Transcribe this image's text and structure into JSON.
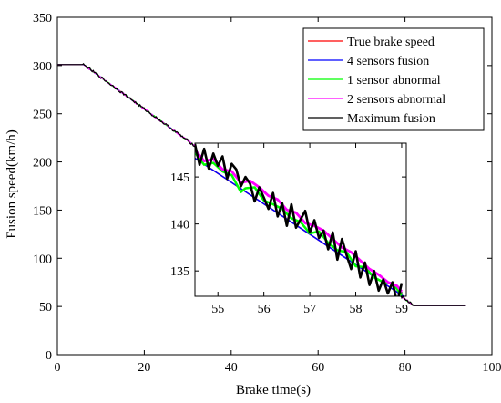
{
  "chart_data": {
    "type": "line",
    "xlabel": "Brake time(s)",
    "ylabel": "Fusion speed(km/h)",
    "xlim": [
      0,
      100
    ],
    "ylim": [
      0,
      350
    ],
    "xticks": [
      0,
      20,
      40,
      60,
      80,
      100
    ],
    "yticks": [
      0,
      50,
      100,
      150,
      200,
      250,
      300,
      350
    ],
    "grid": false,
    "legend_position": "top-right",
    "series": [
      {
        "name": "True brake speed",
        "color": "#ff0000",
        "x": [
          0,
          6,
          82,
          94
        ],
        "y": [
          301,
          301,
          51,
          51
        ]
      },
      {
        "name": "4 sensors fusion",
        "color": "#0000ff",
        "x": [
          0,
          6,
          82,
          94
        ],
        "y": [
          301,
          301,
          51,
          51
        ]
      },
      {
        "name": "1 sensor abnormal",
        "color": "#00ff00",
        "x": [
          0,
          6,
          82,
          94
        ],
        "y": [
          301,
          301,
          51,
          51
        ]
      },
      {
        "name": "2 sensors abnormal",
        "color": "#ff00ff",
        "x": [
          0,
          6,
          82,
          94
        ],
        "y": [
          301,
          301,
          51,
          51
        ]
      },
      {
        "name": "Maximum fusion",
        "color": "#000000",
        "x": [
          0,
          6,
          82,
          94
        ],
        "y": [
          301,
          301,
          51,
          51
        ]
      }
    ],
    "inset": {
      "xlim": [
        54.5,
        59.1
      ],
      "ylim": [
        132.3,
        148.6
      ],
      "xticks": [
        55,
        56,
        57,
        58,
        59
      ],
      "yticks": [
        135,
        140,
        145
      ],
      "series": [
        {
          "name": "True brake speed",
          "color": "#ff0000",
          "x": [
            54.5,
            59.1
          ],
          "y": [
            147.0,
            132.1
          ]
        },
        {
          "name": "4 sensors fusion",
          "color": "#0000ff",
          "x": [
            54.5,
            59.1
          ],
          "y": [
            147.0,
            132.1
          ]
        },
        {
          "name": "1 sensor abnormal",
          "color": "#00ff00",
          "x": [
            54.5,
            54.7,
            54.9,
            55.1,
            55.3,
            55.5,
            55.6,
            55.8,
            56.0,
            56.2,
            56.4,
            56.6,
            56.8,
            57.0,
            57.2,
            57.4,
            57.6,
            57.8,
            58.0,
            58.2,
            58.4,
            58.6,
            58.8,
            59.0
          ],
          "y": [
            147.6,
            146.3,
            146.5,
            145.6,
            145.2,
            143.4,
            143.8,
            143.9,
            142.5,
            142.1,
            141.6,
            140.6,
            140.2,
            139.0,
            139.2,
            138.0,
            137.2,
            137.0,
            135.5,
            135.4,
            134.3,
            133.8,
            133.7,
            132.4
          ]
        },
        {
          "name": "2 sensors abnormal",
          "color": "#ff00ff",
          "x": [
            54.5,
            54.7,
            54.9,
            55.1,
            55.3,
            55.5,
            55.7,
            55.9,
            56.1,
            56.3,
            56.5,
            56.7,
            56.9,
            57.1,
            57.3,
            57.5,
            57.7,
            57.9,
            58.1,
            58.3,
            58.5,
            58.7,
            58.9,
            59.0
          ],
          "y": [
            147.9,
            146.7,
            146.9,
            145.8,
            145.6,
            144.4,
            144.6,
            143.9,
            143.0,
            142.6,
            141.5,
            141.2,
            140.1,
            139.8,
            139.3,
            138.4,
            137.5,
            137.0,
            136.1,
            135.2,
            134.6,
            133.8,
            133.4,
            132.8
          ]
        },
        {
          "name": "Maximum fusion",
          "color": "#000000",
          "x": [
            54.5,
            54.6,
            54.7,
            54.8,
            54.9,
            55.0,
            55.1,
            55.2,
            55.3,
            55.4,
            55.5,
            55.6,
            55.7,
            55.8,
            55.9,
            56.0,
            56.1,
            56.2,
            56.3,
            56.4,
            56.5,
            56.6,
            56.7,
            56.8,
            56.9,
            57.0,
            57.1,
            57.2,
            57.3,
            57.4,
            57.5,
            57.6,
            57.7,
            57.8,
            57.9,
            58.0,
            58.1,
            58.2,
            58.3,
            58.4,
            58.5,
            58.6,
            58.7,
            58.8,
            58.9,
            59.0
          ],
          "y": [
            148.5,
            146.3,
            148.0,
            145.9,
            147.5,
            146.2,
            147.2,
            144.8,
            146.4,
            145.8,
            144.0,
            145.0,
            144.3,
            142.4,
            143.9,
            142.8,
            141.6,
            143.3,
            140.8,
            142.2,
            139.8,
            142.1,
            139.6,
            140.5,
            141.4,
            139.1,
            140.4,
            138.5,
            139.3,
            137.3,
            139.1,
            136.2,
            138.4,
            136.7,
            135.2,
            137.1,
            134.3,
            135.9,
            133.5,
            135.0,
            132.9,
            134.1,
            132.6,
            133.8,
            131.6,
            133.7
          ]
        }
      ]
    }
  }
}
